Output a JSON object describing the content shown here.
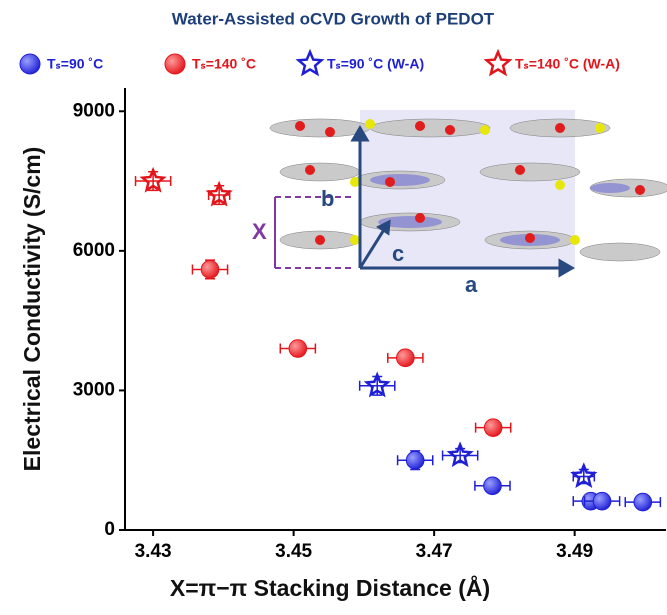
{
  "chart_data": {
    "type": "scatter",
    "title": "Water-Assisted oCVD Growth of PEDOT",
    "xlabel": "X=π−π Stacking Distance (Å)",
    "ylabel": "Electrical Conductivity (S/cm)",
    "xlim": [
      3.426,
      3.503
    ],
    "xticks": [
      3.43,
      3.45,
      3.47,
      3.49
    ],
    "ylim": [
      0,
      9500
    ],
    "yticks": [
      0,
      3000,
      6000,
      9000
    ],
    "series": [
      {
        "name": "Tₛ=90 ˚C",
        "color": "#1f1fd6",
        "marker": "circle",
        "x": [
          3.4673,
          3.4783,
          3.4923,
          3.4939,
          3.4997
        ],
        "values": [
          1500,
          950,
          620,
          620,
          600
        ],
        "xerr": [
          0.0025,
          0.0025,
          0.0025,
          0.0025,
          0.0025
        ],
        "yerr": [
          200,
          150,
          100,
          100,
          100
        ]
      },
      {
        "name": "Tₛ=140 ˚C",
        "color": "#e3151b",
        "marker": "circle",
        "x": [
          3.4381,
          3.4506,
          3.4659,
          3.4784
        ],
        "values": [
          5600,
          3900,
          3700,
          2200
        ],
        "xerr": [
          0.0025,
          0.0025,
          0.0025,
          0.0025
        ],
        "yerr": [
          200,
          150,
          150,
          150
        ]
      },
      {
        "name": "Tₛ=90 ˚C (W-A)",
        "color": "#1f1fd6",
        "marker": "star",
        "x": [
          3.4619,
          3.4737,
          3.4913
        ],
        "values": [
          3100,
          1600,
          1150
        ],
        "xerr": [
          0.0025,
          0.0025,
          0.0015
        ],
        "yerr": [
          200,
          150,
          150
        ]
      },
      {
        "name": "Tₛ=140 ˚C (W-A)",
        "color": "#e3151b",
        "marker": "star",
        "x": [
          3.43,
          3.4394
        ],
        "values": [
          7500,
          7200
        ],
        "xerr": [
          0.0025,
          0.0015
        ],
        "yerr": [
          200,
          200
        ]
      }
    ],
    "annotations": [
      "a",
      "b",
      "c",
      "X"
    ]
  }
}
